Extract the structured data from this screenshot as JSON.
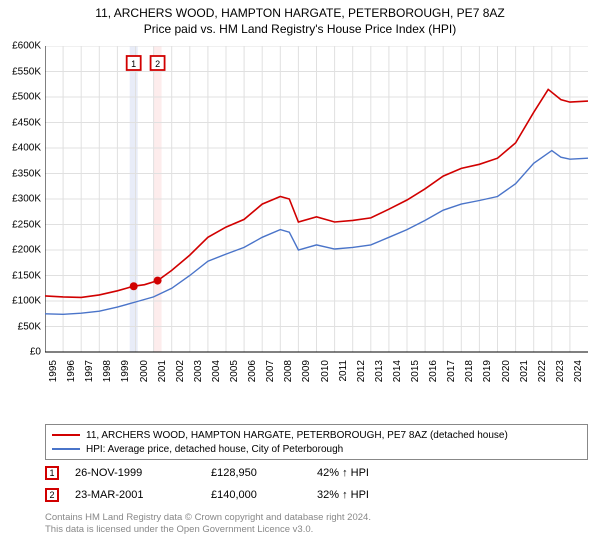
{
  "title_main": "11, ARCHERS WOOD, HAMPTON HARGATE, PETERBOROUGH, PE7 8AZ",
  "title_sub": "Price paid vs. HM Land Registry's House Price Index (HPI)",
  "chart": {
    "type": "line",
    "background_color": "#ffffff",
    "grid_color": "#e0e0e0",
    "axis_color": "#000000",
    "xlim": [
      1995,
      2025
    ],
    "ylim": [
      0,
      600000
    ],
    "ytick_step": 50000,
    "y_ticks": [
      "£0",
      "£50K",
      "£100K",
      "£150K",
      "£200K",
      "£250K",
      "£300K",
      "£350K",
      "£400K",
      "£450K",
      "£500K",
      "£550K",
      "£600K"
    ],
    "x_ticks": [
      1995,
      1996,
      1997,
      1998,
      1999,
      2000,
      2001,
      2002,
      2003,
      2004,
      2005,
      2006,
      2007,
      2008,
      2009,
      2010,
      2011,
      2012,
      2013,
      2014,
      2015,
      2016,
      2017,
      2018,
      2019,
      2020,
      2021,
      2022,
      2023,
      2024
    ],
    "label_fontsize": 10,
    "sale_bands": [
      {
        "x": 1999.9,
        "color": "#e8ecf8"
      },
      {
        "x": 2001.22,
        "color": "#fdecec"
      }
    ],
    "sale_markers": [
      {
        "x": 1999.9,
        "y": 128950,
        "label": "1",
        "color": "#d10000"
      },
      {
        "x": 2001.22,
        "y": 140000,
        "label": "2",
        "color": "#d10000"
      }
    ],
    "series": [
      {
        "name": "property",
        "color": "#d10000",
        "line_width": 1.6,
        "points": [
          [
            1995,
            110000
          ],
          [
            1996,
            108000
          ],
          [
            1997,
            107000
          ],
          [
            1998,
            112000
          ],
          [
            1999,
            120000
          ],
          [
            1999.9,
            128950
          ],
          [
            2000.5,
            132000
          ],
          [
            2001.22,
            140000
          ],
          [
            2002,
            160000
          ],
          [
            2003,
            190000
          ],
          [
            2004,
            225000
          ],
          [
            2005,
            245000
          ],
          [
            2006,
            260000
          ],
          [
            2007,
            290000
          ],
          [
            2008,
            305000
          ],
          [
            2008.5,
            300000
          ],
          [
            2009,
            255000
          ],
          [
            2010,
            265000
          ],
          [
            2011,
            255000
          ],
          [
            2012,
            258000
          ],
          [
            2013,
            263000
          ],
          [
            2014,
            280000
          ],
          [
            2015,
            298000
          ],
          [
            2016,
            320000
          ],
          [
            2017,
            345000
          ],
          [
            2018,
            360000
          ],
          [
            2019,
            368000
          ],
          [
            2020,
            380000
          ],
          [
            2021,
            410000
          ],
          [
            2022,
            470000
          ],
          [
            2022.8,
            515000
          ],
          [
            2023.5,
            495000
          ],
          [
            2024,
            490000
          ],
          [
            2025,
            492000
          ]
        ]
      },
      {
        "name": "hpi",
        "color": "#4a74c9",
        "line_width": 1.4,
        "points": [
          [
            1995,
            75000
          ],
          [
            1996,
            74000
          ],
          [
            1997,
            76000
          ],
          [
            1998,
            80000
          ],
          [
            1999,
            88000
          ],
          [
            2000,
            98000
          ],
          [
            2001,
            108000
          ],
          [
            2002,
            125000
          ],
          [
            2003,
            150000
          ],
          [
            2004,
            178000
          ],
          [
            2005,
            192000
          ],
          [
            2006,
            205000
          ],
          [
            2007,
            225000
          ],
          [
            2008,
            240000
          ],
          [
            2008.5,
            235000
          ],
          [
            2009,
            200000
          ],
          [
            2010,
            210000
          ],
          [
            2011,
            202000
          ],
          [
            2012,
            205000
          ],
          [
            2013,
            210000
          ],
          [
            2014,
            225000
          ],
          [
            2015,
            240000
          ],
          [
            2016,
            258000
          ],
          [
            2017,
            278000
          ],
          [
            2018,
            290000
          ],
          [
            2019,
            297000
          ],
          [
            2020,
            305000
          ],
          [
            2021,
            330000
          ],
          [
            2022,
            370000
          ],
          [
            2023,
            395000
          ],
          [
            2023.5,
            382000
          ],
          [
            2024,
            378000
          ],
          [
            2025,
            380000
          ]
        ]
      }
    ]
  },
  "legend": {
    "items": [
      {
        "color": "#d10000",
        "label": "11, ARCHERS WOOD, HAMPTON HARGATE, PETERBOROUGH, PE7 8AZ (detached house)"
      },
      {
        "color": "#4a74c9",
        "label": "HPI: Average price, detached house, City of Peterborough"
      }
    ]
  },
  "sales": [
    {
      "num": "1",
      "border_color": "#d10000",
      "date": "26-NOV-1999",
      "price": "£128,950",
      "hpi": "42% ↑ HPI"
    },
    {
      "num": "2",
      "border_color": "#d10000",
      "date": "23-MAR-2001",
      "price": "£140,000",
      "hpi": "32% ↑ HPI"
    }
  ],
  "copyright_line1": "Contains HM Land Registry data © Crown copyright and database right 2024.",
  "copyright_line2": "This data is licensed under the Open Government Licence v3.0."
}
